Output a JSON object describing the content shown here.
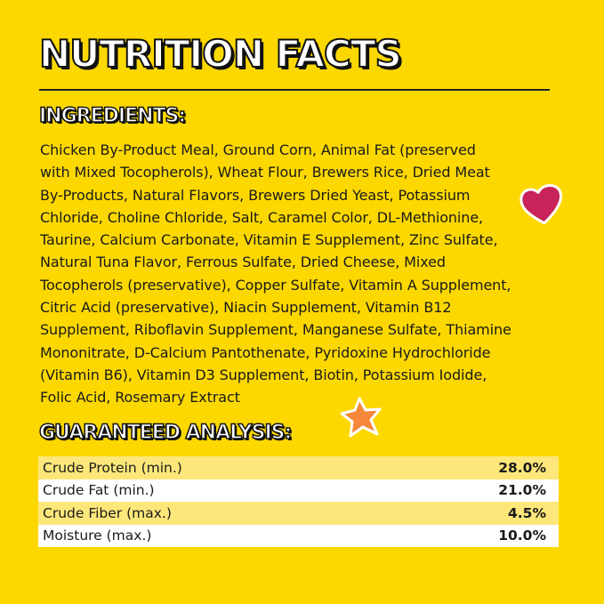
{
  "title": "NUTRITION FACTS",
  "ingredients": {
    "heading": "INGREDIENTS:",
    "lines": [
      "Chicken By-Product Meal, Ground Corn, Animal Fat (preserved",
      "with Mixed Tocopherols), Wheat Flour, Brewers Rice, Dried Meat",
      "By-Products, Natural Flavors, Brewers Dried Yeast, Potassium",
      "Chloride, Choline Chloride, Salt, Caramel Color, DL-Methionine,",
      "Taurine, Calcium Carbonate, Vitamin E Supplement, Zinc Sulfate,",
      "Natural Tuna Flavor, Ferrous Sulfate, Dried Cheese, Mixed",
      "Tocopherols (preservative), Copper Sulfate, Vitamin A Supplement,",
      "Citric Acid (preservative), Niacin Supplement, Vitamin B12",
      "Supplement, Riboflavin Supplement, Manganese Sulfate, Thiamine",
      "Mononitrate, D-Calcium Pantothenate, Pyridoxine Hydrochloride",
      "(Vitamin B6), Vitamin D3 Supplement, Biotin, Potassium Iodide,",
      "Folic Acid, Rosemary Extract"
    ]
  },
  "analysis": {
    "heading": "GUARANTEED ANALYSIS:",
    "rows": [
      {
        "label": "Crude Protein (min.)",
        "value": "28.0%"
      },
      {
        "label": "Crude Fat (min.)",
        "value": "21.0%"
      },
      {
        "label": "Crude Fiber (max.)",
        "value": "4.5%"
      },
      {
        "label": "Moisture (max.)",
        "value": "10.0%"
      }
    ]
  },
  "colors": {
    "background": "#fcd800",
    "row_alt": "#fde77a",
    "heart": "#c8245a",
    "star": "#f5883a"
  },
  "icons": [
    "heart-icon",
    "star-icon"
  ]
}
